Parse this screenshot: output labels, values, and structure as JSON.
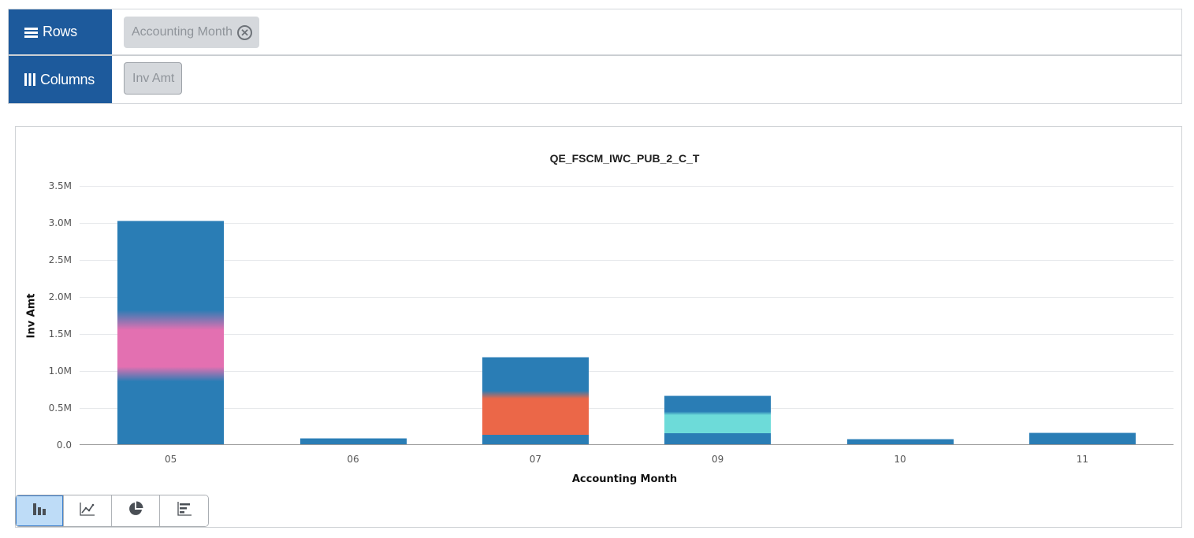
{
  "shelves": {
    "rows": {
      "label": "Rows",
      "icon": "rows-icon",
      "pills": [
        {
          "label": "Accounting Month",
          "removable": true
        }
      ]
    },
    "columns": {
      "label": "Columns",
      "icon": "columns-icon",
      "pills": [
        {
          "label": "Inv Amt",
          "removable": false
        }
      ]
    }
  },
  "chart_types": [
    {
      "name": "bar-chart",
      "active": true
    },
    {
      "name": "line-chart",
      "active": false
    },
    {
      "name": "pie-chart",
      "active": false
    },
    {
      "name": "horizontal-bar-chart",
      "active": false
    }
  ],
  "colors": {
    "shelf_label_bg": "#1d5a9c",
    "bar_blue": "#2a7db5",
    "pink": "#e370b1",
    "orange": "#eb6748",
    "cyan": "#6ddbd9",
    "active_button": "#bedcf7"
  },
  "chart_data": {
    "type": "bar",
    "title": "QE_FSCM_IWC_PUB_2_C_T",
    "xlabel": "Accounting Month",
    "ylabel": "Inv Amt",
    "ylim": [
      0,
      3500000
    ],
    "yticks": [
      "0.0",
      "0.5M",
      "1.0M",
      "1.5M",
      "2.0M",
      "2.5M",
      "3.0M",
      "3.5M"
    ],
    "grid": true,
    "legend": "none",
    "stacked": true,
    "categories": [
      "05",
      "06",
      "07",
      "09",
      "10",
      "11"
    ],
    "values": [
      3020000,
      85000,
      1180000,
      660000,
      75000,
      160000
    ],
    "bars": [
      {
        "category": "05",
        "total": 3020000,
        "segments": [
          {
            "from": 0,
            "to": 850000,
            "color": "#2a7db5"
          },
          {
            "from": 850000,
            "to": 1050000,
            "color": "blend"
          },
          {
            "from": 1050000,
            "to": 1550000,
            "color": "#e370b1"
          },
          {
            "from": 1550000,
            "to": 1820000,
            "color": "blend"
          },
          {
            "from": 1820000,
            "to": 3020000,
            "color": "#2a7db5"
          }
        ]
      },
      {
        "category": "06",
        "total": 85000,
        "segments": [
          {
            "from": 0,
            "to": 85000,
            "color": "#2a7db5"
          }
        ]
      },
      {
        "category": "07",
        "total": 1180000,
        "segments": [
          {
            "from": 0,
            "to": 130000,
            "color": "#2a7db5"
          },
          {
            "from": 130000,
            "to": 620000,
            "color": "#eb6748"
          },
          {
            "from": 620000,
            "to": 730000,
            "color": "blend"
          },
          {
            "from": 730000,
            "to": 1180000,
            "color": "#2a7db5"
          }
        ]
      },
      {
        "category": "09",
        "total": 660000,
        "segments": [
          {
            "from": 0,
            "to": 150000,
            "color": "#2a7db5"
          },
          {
            "from": 150000,
            "to": 400000,
            "color": "#6ddbd9"
          },
          {
            "from": 400000,
            "to": 450000,
            "color": "blend"
          },
          {
            "from": 450000,
            "to": 660000,
            "color": "#2a7db5"
          }
        ]
      },
      {
        "category": "10",
        "total": 75000,
        "segments": [
          {
            "from": 0,
            "to": 75000,
            "color": "#2a7db5"
          }
        ]
      },
      {
        "category": "11",
        "total": 160000,
        "segments": [
          {
            "from": 0,
            "to": 160000,
            "color": "#2a7db5"
          }
        ]
      }
    ]
  }
}
